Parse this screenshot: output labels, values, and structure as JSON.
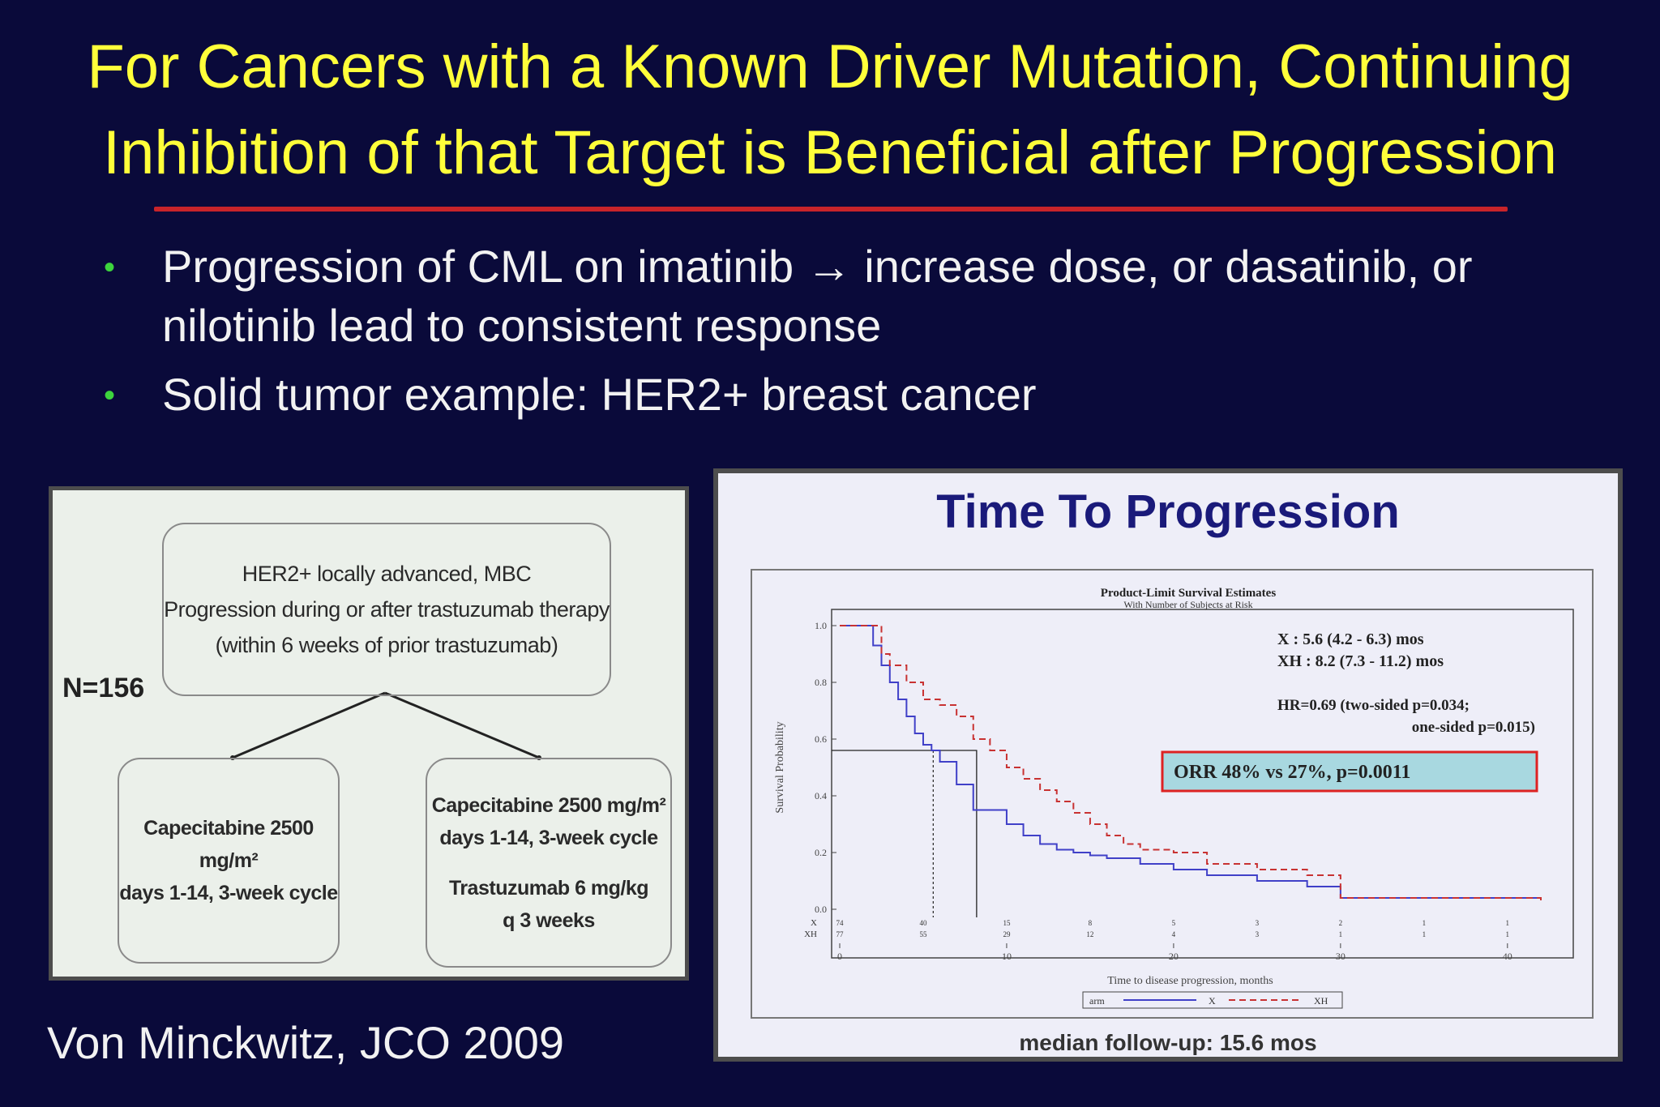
{
  "slide": {
    "title_line1": "For Cancers with a Known Driver Mutation, Continuing",
    "title_line2": "Inhibition of that Target is Beneficial after Progression",
    "bullets": [
      "Progression of CML on imatinib → increase dose, or dasatinib, or nilotinib lead to consistent response",
      "Solid tumor example: HER2+ breast cancer"
    ],
    "citation": "Von Minckwitz, JCO 2009",
    "colors": {
      "background": "#0a0a3a",
      "title": "#ffff3a",
      "rule": "#c8242a",
      "bullet": "#3dd43d"
    }
  },
  "diagram": {
    "n_label": "N=156",
    "top_box": [
      "HER2+ locally advanced, MBC",
      "Progression during or after trastuzumab therapy",
      "(within 6 weeks of prior trastuzumab)"
    ],
    "left_box": [
      "Capecitabine 2500 mg/m²",
      "days 1-14, 3-week cycle"
    ],
    "right_box": [
      "Capecitabine 2500 mg/m²",
      "days 1-14, 3-week cycle",
      "",
      "Trastuzumab 6 mg/kg",
      "q 3 weeks"
    ]
  },
  "km_panel": {
    "title": "Time To Progression",
    "footnote": "median follow-up: 15.6 mos"
  },
  "chart_data": {
    "type": "line",
    "title": "Product-Limit Survival Estimates",
    "subtitle": "With Number of Subjects at Risk",
    "xlabel": "Time to disease progression, months",
    "ylabel": "Survival Probability",
    "xlim": [
      0,
      42
    ],
    "ylim": [
      0,
      1.0
    ],
    "xticks": [
      0,
      10,
      20,
      30,
      40
    ],
    "yticks": [
      "0.0",
      "0.2",
      "0.4",
      "0.6",
      "0.8",
      "1.0"
    ],
    "legend": {
      "label": "arm",
      "position": "bottom",
      "items": [
        "X",
        "XH"
      ]
    },
    "series": [
      {
        "name": "X",
        "color": "#4040c8",
        "dash": "solid",
        "x": [
          0,
          1.5,
          2,
          2.5,
          3,
          3.5,
          4,
          4.5,
          5,
          5.5,
          6,
          7,
          8,
          9,
          10,
          11,
          12,
          13,
          14,
          15,
          16,
          18,
          20,
          22,
          25,
          28,
          30,
          35,
          40,
          42
        ],
        "y": [
          1.0,
          1.0,
          0.93,
          0.86,
          0.8,
          0.74,
          0.68,
          0.62,
          0.58,
          0.56,
          0.52,
          0.44,
          0.35,
          0.35,
          0.3,
          0.26,
          0.23,
          0.21,
          0.2,
          0.19,
          0.18,
          0.16,
          0.14,
          0.12,
          0.1,
          0.08,
          0.04,
          0.04,
          0.04,
          0.04
        ]
      },
      {
        "name": "XH",
        "color": "#c83232",
        "dash": "dashed",
        "x": [
          0,
          2,
          2.5,
          3,
          4,
          5,
          6,
          7,
          8,
          9,
          10,
          11,
          12,
          13,
          14,
          15,
          16,
          17,
          18,
          20,
          22,
          25,
          28,
          30,
          35,
          40,
          42
        ],
        "y": [
          1.0,
          1.0,
          0.9,
          0.86,
          0.8,
          0.74,
          0.72,
          0.68,
          0.6,
          0.56,
          0.5,
          0.46,
          0.42,
          0.38,
          0.34,
          0.3,
          0.26,
          0.23,
          0.21,
          0.2,
          0.16,
          0.14,
          0.12,
          0.04,
          0.04,
          0.04,
          0.03
        ]
      }
    ],
    "medians": {
      "X": 5.6,
      "XH": 8.2,
      "probability": 0.56
    },
    "annotations": {
      "x_line": "X   : 5.6 (4.2 -  6.3) mos",
      "xh_line": "XH : 8.2 (7.3 - 11.2) mos",
      "hr_line1": "HR=0.69 (two-sided p=0.034;",
      "hr_line2": "one-sided p=0.015)",
      "orr": "ORR 48% vs 27%, p=0.0011"
    },
    "at_risk": {
      "labels": [
        "X",
        "XH"
      ],
      "times": [
        0,
        5,
        10,
        15,
        20,
        25,
        30,
        35,
        40
      ],
      "X": [
        "74",
        "40",
        "15",
        "8",
        "5",
        "3",
        "2",
        "1",
        "1"
      ],
      "XH": [
        "77",
        "55",
        "29",
        "12",
        "4",
        "3",
        "1",
        "1",
        "1"
      ]
    }
  }
}
